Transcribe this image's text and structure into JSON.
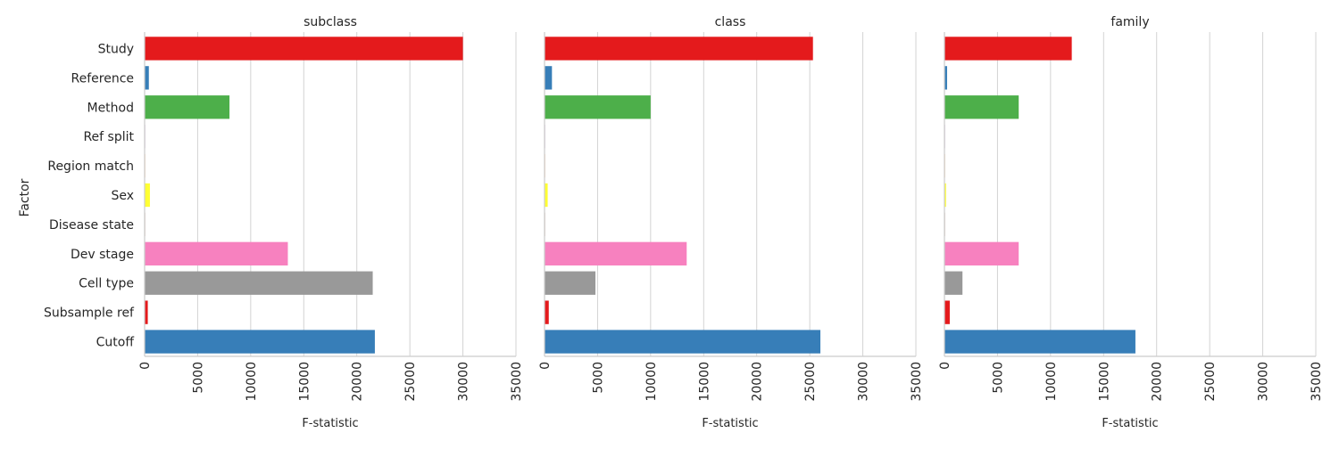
{
  "chart_data": {
    "type": "bar",
    "orientation": "horizontal",
    "ylabel": "Factor",
    "xlabel": "F-statistic",
    "xlim": [
      0,
      35000
    ],
    "xticks": [
      0,
      5000,
      10000,
      15000,
      20000,
      25000,
      30000,
      35000
    ],
    "grid": true,
    "categories": [
      "Study",
      "Reference",
      "Method",
      "Ref split",
      "Region match",
      "Sex",
      "Disease state",
      "Dev stage",
      "Cell type",
      "Subsample ref",
      "Cutoff"
    ],
    "colors": [
      "#e41a1c",
      "#377eb8",
      "#4daf4a",
      "#984ea3",
      "#ff7f00",
      "#ffff33",
      "#a65628",
      "#f781bf",
      "#999999",
      "#e41a1c",
      "#377eb8"
    ],
    "panels": [
      {
        "title": "subclass",
        "values": [
          30000,
          400,
          8000,
          20,
          30,
          500,
          20,
          13500,
          21500,
          300,
          21700
        ]
      },
      {
        "title": "class",
        "values": [
          25300,
          700,
          10000,
          30,
          30,
          300,
          20,
          13400,
          4800,
          400,
          26000
        ]
      },
      {
        "title": "family",
        "values": [
          12000,
          250,
          7000,
          20,
          30,
          150,
          20,
          7000,
          1700,
          500,
          18000
        ]
      }
    ]
  }
}
